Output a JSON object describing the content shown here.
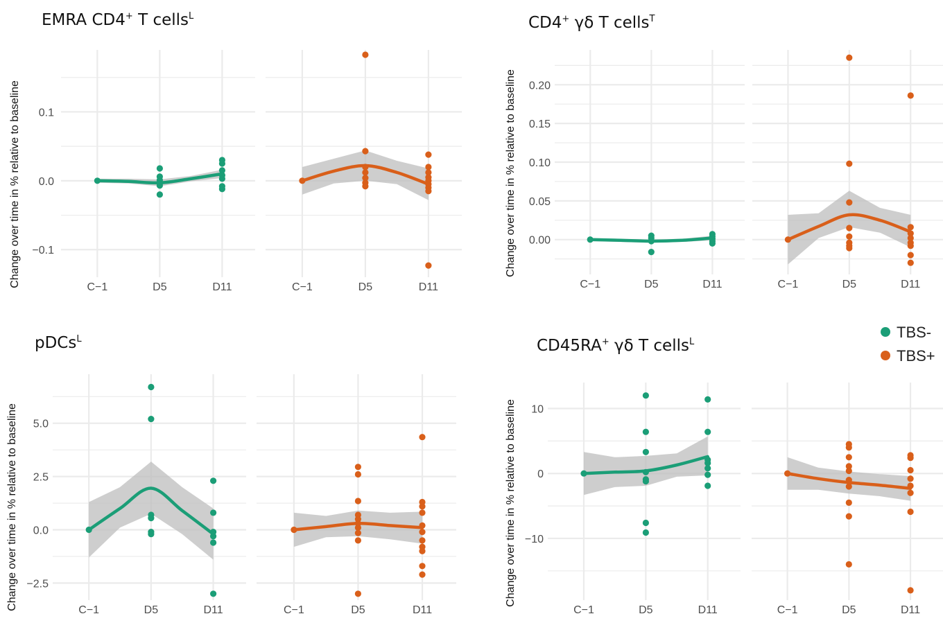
{
  "colors": {
    "TBS-": "#1b9e77",
    "TBS+": "#d95f1a",
    "ribbon": "#bdbdbd",
    "grid": "#ebebeb"
  },
  "legend": {
    "entries": [
      {
        "label": "TBS-",
        "color": "#1b9e77"
      },
      {
        "label": "TBS+",
        "color": "#d95f1a"
      }
    ]
  },
  "chart_data": [
    {
      "type": "scatter",
      "title": {
        "main": "EMRA CD4",
        "sup1": "+",
        "after": " T cells",
        "sup2": "L"
      },
      "ylabel": "Change over time in % relative to baseline",
      "categories": [
        "C−1",
        "D5",
        "D11"
      ],
      "ylim": [
        -0.14,
        0.19
      ],
      "yticks": [
        -0.1,
        0.0,
        0.1
      ],
      "yticklabels": [
        "−0.1",
        "0.0",
        "0.1"
      ],
      "facets": [
        {
          "group": "TBS-",
          "points": [
            [
              0,
              0.0
            ],
            [
              1,
              0.018
            ],
            [
              1,
              0.006
            ],
            [
              1,
              0.001
            ],
            [
              1,
              -0.004
            ],
            [
              1,
              -0.007
            ],
            [
              1,
              -0.02
            ],
            [
              2,
              0.03
            ],
            [
              2,
              0.025
            ],
            [
              2,
              0.015
            ],
            [
              2,
              0.008
            ],
            [
              2,
              0.003
            ],
            [
              2,
              -0.008
            ],
            [
              2,
              -0.012
            ]
          ],
          "smooth": {
            "x": [
              0,
              0.5,
              1,
              1.5,
              2
            ],
            "y": [
              0.0,
              -0.001,
              -0.003,
              0.003,
              0.01
            ],
            "lower": [
              -0.003,
              -0.004,
              -0.008,
              -0.001,
              0.004
            ],
            "upper": [
              0.003,
              0.003,
              0.002,
              0.007,
              0.016
            ]
          }
        },
        {
          "group": "TBS+",
          "points": [
            [
              0,
              0.0
            ],
            [
              1,
              0.183
            ],
            [
              1,
              0.043
            ],
            [
              1,
              0.02
            ],
            [
              1,
              0.012
            ],
            [
              1,
              0.004
            ],
            [
              1,
              -0.003
            ],
            [
              1,
              -0.008
            ],
            [
              2,
              0.038
            ],
            [
              2,
              0.02
            ],
            [
              2,
              0.012
            ],
            [
              2,
              0.005
            ],
            [
              2,
              0.0
            ],
            [
              2,
              -0.005
            ],
            [
              2,
              -0.01
            ],
            [
              2,
              -0.015
            ],
            [
              2,
              -0.123
            ]
          ],
          "smooth": {
            "x": [
              0,
              0.5,
              1,
              1.5,
              2
            ],
            "y": [
              0.0,
              0.014,
              0.022,
              0.012,
              -0.005
            ],
            "lower": [
              -0.02,
              -0.004,
              0.0,
              -0.005,
              -0.028
            ],
            "upper": [
              0.02,
              0.032,
              0.044,
              0.029,
              0.018
            ]
          }
        }
      ]
    },
    {
      "type": "scatter",
      "title": {
        "main": "CD4",
        "sup1": "+",
        "after": " γδ T cells",
        "sup2": "T"
      },
      "ylabel": "Change over time in % relative to baseline",
      "categories": [
        "C−1",
        "D5",
        "D11"
      ],
      "ylim": [
        -0.045,
        0.245
      ],
      "yticks": [
        0.0,
        0.05,
        0.1,
        0.15,
        0.2
      ],
      "yticklabels": [
        "0.00",
        "0.05",
        "0.10",
        "0.15",
        "0.20"
      ],
      "facets": [
        {
          "group": "TBS-",
          "points": [
            [
              0,
              0.0
            ],
            [
              1,
              0.005
            ],
            [
              1,
              0.002
            ],
            [
              1,
              -0.002
            ],
            [
              1,
              -0.016
            ],
            [
              2,
              0.007
            ],
            [
              2,
              0.004
            ],
            [
              2,
              0.001
            ],
            [
              2,
              -0.002
            ],
            [
              2,
              -0.005
            ]
          ],
          "smooth": {
            "x": [
              0,
              0.5,
              1,
              1.5,
              2
            ],
            "y": [
              0.0,
              -0.001,
              -0.002,
              -0.001,
              0.002
            ],
            "lower": [
              -0.002,
              -0.003,
              -0.004,
              -0.003,
              -0.001
            ],
            "upper": [
              0.002,
              0.001,
              0.0,
              0.001,
              0.005
            ]
          }
        },
        {
          "group": "TBS+",
          "points": [
            [
              0,
              0.0
            ],
            [
              1,
              0.235
            ],
            [
              1,
              0.098
            ],
            [
              1,
              0.048
            ],
            [
              1,
              0.015
            ],
            [
              1,
              0.004
            ],
            [
              1,
              -0.004
            ],
            [
              1,
              -0.008
            ],
            [
              1,
              -0.011
            ],
            [
              2,
              0.186
            ],
            [
              2,
              0.016
            ],
            [
              2,
              0.008
            ],
            [
              2,
              0.002
            ],
            [
              2,
              -0.004
            ],
            [
              2,
              -0.008
            ],
            [
              2,
              -0.02
            ],
            [
              2,
              -0.03
            ]
          ],
          "smooth": {
            "x": [
              0,
              0.5,
              1,
              1.5,
              2
            ],
            "y": [
              0.0,
              0.017,
              0.032,
              0.025,
              0.01
            ],
            "lower": [
              -0.032,
              0.002,
              0.016,
              0.009,
              -0.01
            ],
            "upper": [
              0.032,
              0.034,
              0.063,
              0.041,
              0.032
            ]
          }
        }
      ]
    },
    {
      "type": "scatter",
      "title": {
        "main": "pDCs",
        "sup1": "",
        "after": "",
        "sup2": "L"
      },
      "ylabel": "Change over time in % relative to baseline",
      "categories": [
        "C−1",
        "D5",
        "D11"
      ],
      "ylim": [
        -3.3,
        7.3
      ],
      "yticks": [
        -2.5,
        0.0,
        2.5,
        5.0
      ],
      "yticklabels": [
        "−2.5",
        "0.0",
        "2.5",
        "5.0"
      ],
      "facets": [
        {
          "group": "TBS-",
          "points": [
            [
              0,
              0.0
            ],
            [
              1,
              6.7
            ],
            [
              1,
              5.2
            ],
            [
              1,
              0.7
            ],
            [
              1,
              0.55
            ],
            [
              1,
              -0.1
            ],
            [
              1,
              -0.2
            ],
            [
              2,
              2.3
            ],
            [
              2,
              0.8
            ],
            [
              2,
              -0.1
            ],
            [
              2,
              -0.3
            ],
            [
              2,
              -0.6
            ],
            [
              2,
              -3.0
            ]
          ],
          "smooth": {
            "x": [
              0,
              0.5,
              1,
              1.5,
              2
            ],
            "y": [
              0.0,
              1.0,
              1.95,
              0.9,
              -0.2
            ],
            "lower": [
              -1.3,
              0.1,
              0.75,
              -0.2,
              -1.4
            ],
            "upper": [
              1.3,
              2.0,
              3.2,
              2.0,
              1.0
            ]
          }
        },
        {
          "group": "TBS+",
          "points": [
            [
              0,
              0.0
            ],
            [
              1,
              2.95
            ],
            [
              1,
              2.6
            ],
            [
              1,
              1.35
            ],
            [
              1,
              0.7
            ],
            [
              1,
              0.5
            ],
            [
              1,
              0.3
            ],
            [
              1,
              0.1
            ],
            [
              1,
              -0.15
            ],
            [
              1,
              -0.5
            ],
            [
              1,
              -3.0
            ],
            [
              2,
              4.35
            ],
            [
              2,
              1.3
            ],
            [
              2,
              1.1
            ],
            [
              2,
              0.8
            ],
            [
              2,
              0.2
            ],
            [
              2,
              -0.1
            ],
            [
              2,
              -0.5
            ],
            [
              2,
              -0.8
            ],
            [
              2,
              -1.0
            ],
            [
              2,
              -1.7
            ],
            [
              2,
              -2.1
            ]
          ],
          "smooth": {
            "x": [
              0,
              0.5,
              1,
              1.5,
              2
            ],
            "y": [
              0.0,
              0.15,
              0.3,
              0.2,
              0.1
            ],
            "lower": [
              -0.8,
              -0.35,
              -0.3,
              -0.45,
              -0.65
            ],
            "upper": [
              0.8,
              0.65,
              0.9,
              0.8,
              0.85
            ]
          }
        }
      ]
    },
    {
      "type": "scatter",
      "title": {
        "main": "CD45RA",
        "sup1": "+",
        "after": " γδ T cells",
        "sup2": "L"
      },
      "ylabel": "Change over time in % relative to baseline",
      "categories": [
        "C−1",
        "D5",
        "D11"
      ],
      "ylim": [
        -19.5,
        14
      ],
      "yticks": [
        -10,
        0,
        10
      ],
      "yticklabels": [
        "−10",
        "0",
        "10"
      ],
      "facets": [
        {
          "group": "TBS-",
          "points": [
            [
              0,
              0.0
            ],
            [
              1,
              12.0
            ],
            [
              1,
              6.4
            ],
            [
              1,
              3.3
            ],
            [
              1,
              0.2
            ],
            [
              1,
              -0.9
            ],
            [
              1,
              -1.2
            ],
            [
              1,
              -7.6
            ],
            [
              1,
              -9.1
            ],
            [
              2,
              11.4
            ],
            [
              2,
              6.4
            ],
            [
              2,
              2.1
            ],
            [
              2,
              1.6
            ],
            [
              2,
              0.8
            ],
            [
              2,
              -0.2
            ],
            [
              2,
              -1.9
            ]
          ],
          "smooth": {
            "x": [
              0,
              0.5,
              1,
              1.5,
              2
            ],
            "y": [
              0.0,
              0.2,
              0.4,
              1.3,
              2.6
            ],
            "lower": [
              -3.3,
              -2.1,
              -1.9,
              -0.5,
              -0.3
            ],
            "upper": [
              3.3,
              2.5,
              2.7,
              3.1,
              5.7
            ]
          }
        },
        {
          "group": "TBS+",
          "points": [
            [
              0,
              0.0
            ],
            [
              1,
              4.5
            ],
            [
              1,
              4.0
            ],
            [
              1,
              2.5
            ],
            [
              1,
              1.1
            ],
            [
              1,
              0.4
            ],
            [
              1,
              -1.0
            ],
            [
              1,
              -2.0
            ],
            [
              1,
              -4.5
            ],
            [
              1,
              -6.6
            ],
            [
              1,
              -14.0
            ],
            [
              2,
              2.8
            ],
            [
              2,
              2.4
            ],
            [
              2,
              0.5
            ],
            [
              2,
              -0.8
            ],
            [
              2,
              -1.9
            ],
            [
              2,
              -3.0
            ],
            [
              2,
              -5.9
            ],
            [
              2,
              -18.0
            ]
          ],
          "smooth": {
            "x": [
              0,
              0.5,
              1,
              1.5,
              2
            ],
            "y": [
              0.0,
              -0.8,
              -1.4,
              -1.8,
              -2.3
            ],
            "lower": [
              -2.5,
              -2.5,
              -3.1,
              -3.5,
              -4.2
            ],
            "upper": [
              2.5,
              0.9,
              0.3,
              -0.1,
              -0.4
            ]
          }
        }
      ]
    }
  ]
}
